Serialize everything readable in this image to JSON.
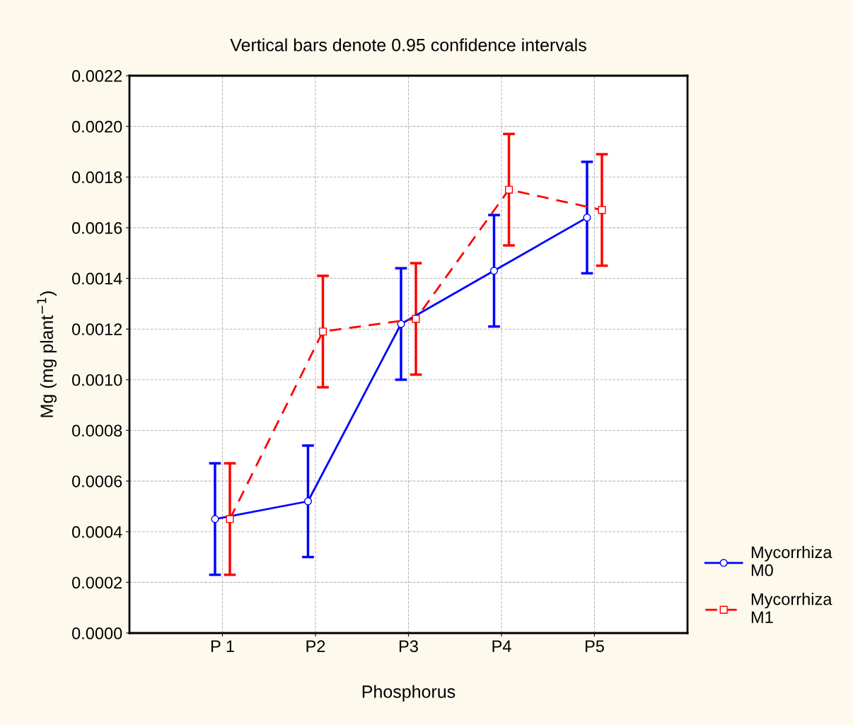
{
  "chart_data": {
    "type": "line",
    "title": "Vertical bars denote 0.95 confidence intervals",
    "xlabel": "Phosphorus",
    "ylabel": "Mg (mg plant$^{−1}$)",
    "categories": [
      "P 1",
      "P2",
      "P3",
      "P4",
      "P5"
    ],
    "series": [
      {
        "name": "Mycorrhiza M0",
        "color": "#0000ff",
        "marker": "circle",
        "line_style": "solid",
        "values": [
          0.00045,
          0.00052,
          0.00122,
          0.00143,
          0.00164
        ],
        "errors": [
          [
            0.00023,
            0.00067
          ],
          [
            0.0003,
            0.00074
          ],
          [
            0.001,
            0.00144
          ],
          [
            0.00121,
            0.00165
          ],
          [
            0.00142,
            0.00186
          ]
        ]
      },
      {
        "name": "Mycorrhiza M1",
        "color": "#ff0000",
        "marker": "square",
        "line_style": "dashed",
        "values": [
          0.00045,
          0.00119,
          0.00124,
          0.00175,
          0.00167
        ],
        "errors": [
          [
            0.00023,
            0.00067
          ],
          [
            0.00097,
            0.00141
          ],
          [
            0.00102,
            0.00146
          ],
          [
            0.00153,
            0.00197
          ],
          [
            0.00145,
            0.00189
          ]
        ]
      }
    ],
    "ylim": [
      0,
      0.0022
    ],
    "yticks": [
      {
        "value": 0,
        "label": "0.0000"
      },
      {
        "value": 0.0002,
        "label": "0.0002"
      },
      {
        "value": 0.0004,
        "label": "0.0004"
      },
      {
        "value": 0.0006,
        "label": "0.0006"
      },
      {
        "value": 0.0008,
        "label": "0.0008"
      },
      {
        "value": 0.001,
        "label": "0.0010"
      },
      {
        "value": 0.0012,
        "label": "0.0012"
      },
      {
        "value": 0.0014,
        "label": "0.0014"
      },
      {
        "value": 0.0016,
        "label": "0.0016"
      },
      {
        "value": 0.0018,
        "label": "0.0018"
      },
      {
        "value": 0.002,
        "label": "0.0020"
      },
      {
        "value": 0.0022,
        "label": "0.0022"
      }
    ],
    "grid": true,
    "legend": "bottom right"
  }
}
